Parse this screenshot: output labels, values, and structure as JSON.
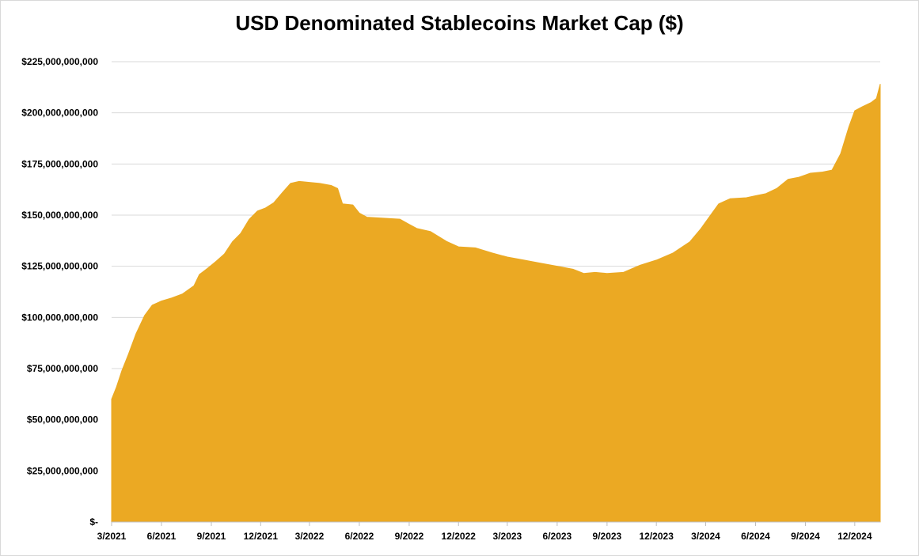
{
  "chart_data": {
    "type": "area",
    "title": "USD Denominated Stablecoins Market Cap ($)",
    "xlabel": "",
    "ylabel": "",
    "ylim": [
      0,
      225000000000
    ],
    "grid": true,
    "legend": "none",
    "fill_color": "#EBA923",
    "gridline_color": "#d9d9d9",
    "y_ticks": [
      {
        "value": 0,
        "label": "$-"
      },
      {
        "value": 25000000000,
        "label": "$25,000,000,000"
      },
      {
        "value": 50000000000,
        "label": "$50,000,000,000"
      },
      {
        "value": 75000000000,
        "label": "$75,000,000,000"
      },
      {
        "value": 100000000000,
        "label": "$100,000,000,000"
      },
      {
        "value": 125000000000,
        "label": "$125,000,000,000"
      },
      {
        "value": 150000000000,
        "label": "$150,000,000,000"
      },
      {
        "value": 175000000000,
        "label": "$175,000,000,000"
      },
      {
        "value": 200000000000,
        "label": "$200,000,000,000"
      },
      {
        "value": 225000000000,
        "label": "$225,000,000,000"
      }
    ],
    "x_ticks": [
      {
        "value": "2021-03-01",
        "label": "3/2021"
      },
      {
        "value": "2021-06-01",
        "label": "6/2021"
      },
      {
        "value": "2021-09-01",
        "label": "9/2021"
      },
      {
        "value": "2021-12-01",
        "label": "12/2021"
      },
      {
        "value": "2022-03-01",
        "label": "3/2022"
      },
      {
        "value": "2022-06-01",
        "label": "6/2022"
      },
      {
        "value": "2022-09-01",
        "label": "9/2022"
      },
      {
        "value": "2022-12-01",
        "label": "12/2022"
      },
      {
        "value": "2023-03-01",
        "label": "3/2023"
      },
      {
        "value": "2023-06-01",
        "label": "6/2023"
      },
      {
        "value": "2023-09-01",
        "label": "9/2023"
      },
      {
        "value": "2023-12-01",
        "label": "12/2023"
      },
      {
        "value": "2024-03-01",
        "label": "3/2024"
      },
      {
        "value": "2024-06-01",
        "label": "6/2024"
      },
      {
        "value": "2024-09-01",
        "label": "9/2024"
      },
      {
        "value": "2024-12-01",
        "label": "12/2024"
      }
    ],
    "xlim": [
      "2021-03-01",
      "2025-01-17"
    ],
    "series": [
      {
        "points": [
          {
            "x": "2021-03-01",
            "y": 60000000000
          },
          {
            "x": "2021-03-10",
            "y": 66000000000
          },
          {
            "x": "2021-03-20",
            "y": 74000000000
          },
          {
            "x": "2021-04-01",
            "y": 82000000000
          },
          {
            "x": "2021-04-15",
            "y": 92000000000
          },
          {
            "x": "2021-05-01",
            "y": 101000000000
          },
          {
            "x": "2021-05-15",
            "y": 106000000000
          },
          {
            "x": "2021-06-01",
            "y": 108000000000
          },
          {
            "x": "2021-06-20",
            "y": 109500000000
          },
          {
            "x": "2021-07-10",
            "y": 111500000000
          },
          {
            "x": "2021-07-31",
            "y": 115500000000
          },
          {
            "x": "2021-08-10",
            "y": 121000000000
          },
          {
            "x": "2021-08-25",
            "y": 124000000000
          },
          {
            "x": "2021-09-10",
            "y": 127500000000
          },
          {
            "x": "2021-09-25",
            "y": 131000000000
          },
          {
            "x": "2021-10-10",
            "y": 137000000000
          },
          {
            "x": "2021-10-25",
            "y": 141000000000
          },
          {
            "x": "2021-11-10",
            "y": 148000000000
          },
          {
            "x": "2021-11-25",
            "y": 152000000000
          },
          {
            "x": "2021-12-10",
            "y": 153500000000
          },
          {
            "x": "2021-12-25",
            "y": 156000000000
          },
          {
            "x": "2022-01-10",
            "y": 161000000000
          },
          {
            "x": "2022-01-25",
            "y": 165500000000
          },
          {
            "x": "2022-02-10",
            "y": 166500000000
          },
          {
            "x": "2022-03-01",
            "y": 166000000000
          },
          {
            "x": "2022-03-20",
            "y": 165500000000
          },
          {
            "x": "2022-04-10",
            "y": 164500000000
          },
          {
            "x": "2022-04-22",
            "y": 163000000000
          },
          {
            "x": "2022-05-01",
            "y": 155500000000
          },
          {
            "x": "2022-05-20",
            "y": 155000000000
          },
          {
            "x": "2022-06-01",
            "y": 151000000000
          },
          {
            "x": "2022-06-15",
            "y": 149000000000
          },
          {
            "x": "2022-07-15",
            "y": 148500000000
          },
          {
            "x": "2022-08-15",
            "y": 148000000000
          },
          {
            "x": "2022-09-01",
            "y": 145500000000
          },
          {
            "x": "2022-09-15",
            "y": 143500000000
          },
          {
            "x": "2022-10-10",
            "y": 142000000000
          },
          {
            "x": "2022-11-10",
            "y": 137000000000
          },
          {
            "x": "2022-12-01",
            "y": 134500000000
          },
          {
            "x": "2023-01-01",
            "y": 134000000000
          },
          {
            "x": "2023-02-01",
            "y": 131500000000
          },
          {
            "x": "2023-03-01",
            "y": 129500000000
          },
          {
            "x": "2023-04-01",
            "y": 128000000000
          },
          {
            "x": "2023-05-01",
            "y": 126500000000
          },
          {
            "x": "2023-06-01",
            "y": 125000000000
          },
          {
            "x": "2023-07-01",
            "y": 123500000000
          },
          {
            "x": "2023-07-20",
            "y": 121500000000
          },
          {
            "x": "2023-08-10",
            "y": 122000000000
          },
          {
            "x": "2023-09-01",
            "y": 121500000000
          },
          {
            "x": "2023-10-01",
            "y": 122000000000
          },
          {
            "x": "2023-11-01",
            "y": 125500000000
          },
          {
            "x": "2023-12-01",
            "y": 128000000000
          },
          {
            "x": "2024-01-01",
            "y": 131500000000
          },
          {
            "x": "2024-02-01",
            "y": 137000000000
          },
          {
            "x": "2024-02-20",
            "y": 143000000000
          },
          {
            "x": "2024-03-10",
            "y": 150000000000
          },
          {
            "x": "2024-03-25",
            "y": 155500000000
          },
          {
            "x": "2024-04-15",
            "y": 158000000000
          },
          {
            "x": "2024-05-15",
            "y": 158500000000
          },
          {
            "x": "2024-06-01",
            "y": 159500000000
          },
          {
            "x": "2024-06-20",
            "y": 160500000000
          },
          {
            "x": "2024-07-10",
            "y": 163000000000
          },
          {
            "x": "2024-07-31",
            "y": 167500000000
          },
          {
            "x": "2024-08-20",
            "y": 168500000000
          },
          {
            "x": "2024-09-10",
            "y": 170500000000
          },
          {
            "x": "2024-10-01",
            "y": 171000000000
          },
          {
            "x": "2024-10-20",
            "y": 172000000000
          },
          {
            "x": "2024-11-05",
            "y": 180000000000
          },
          {
            "x": "2024-11-20",
            "y": 193000000000
          },
          {
            "x": "2024-12-01",
            "y": 201000000000
          },
          {
            "x": "2024-12-15",
            "y": 203000000000
          },
          {
            "x": "2024-12-31",
            "y": 205000000000
          },
          {
            "x": "2025-01-10",
            "y": 207000000000
          },
          {
            "x": "2025-01-17",
            "y": 214000000000
          }
        ]
      }
    ]
  }
}
